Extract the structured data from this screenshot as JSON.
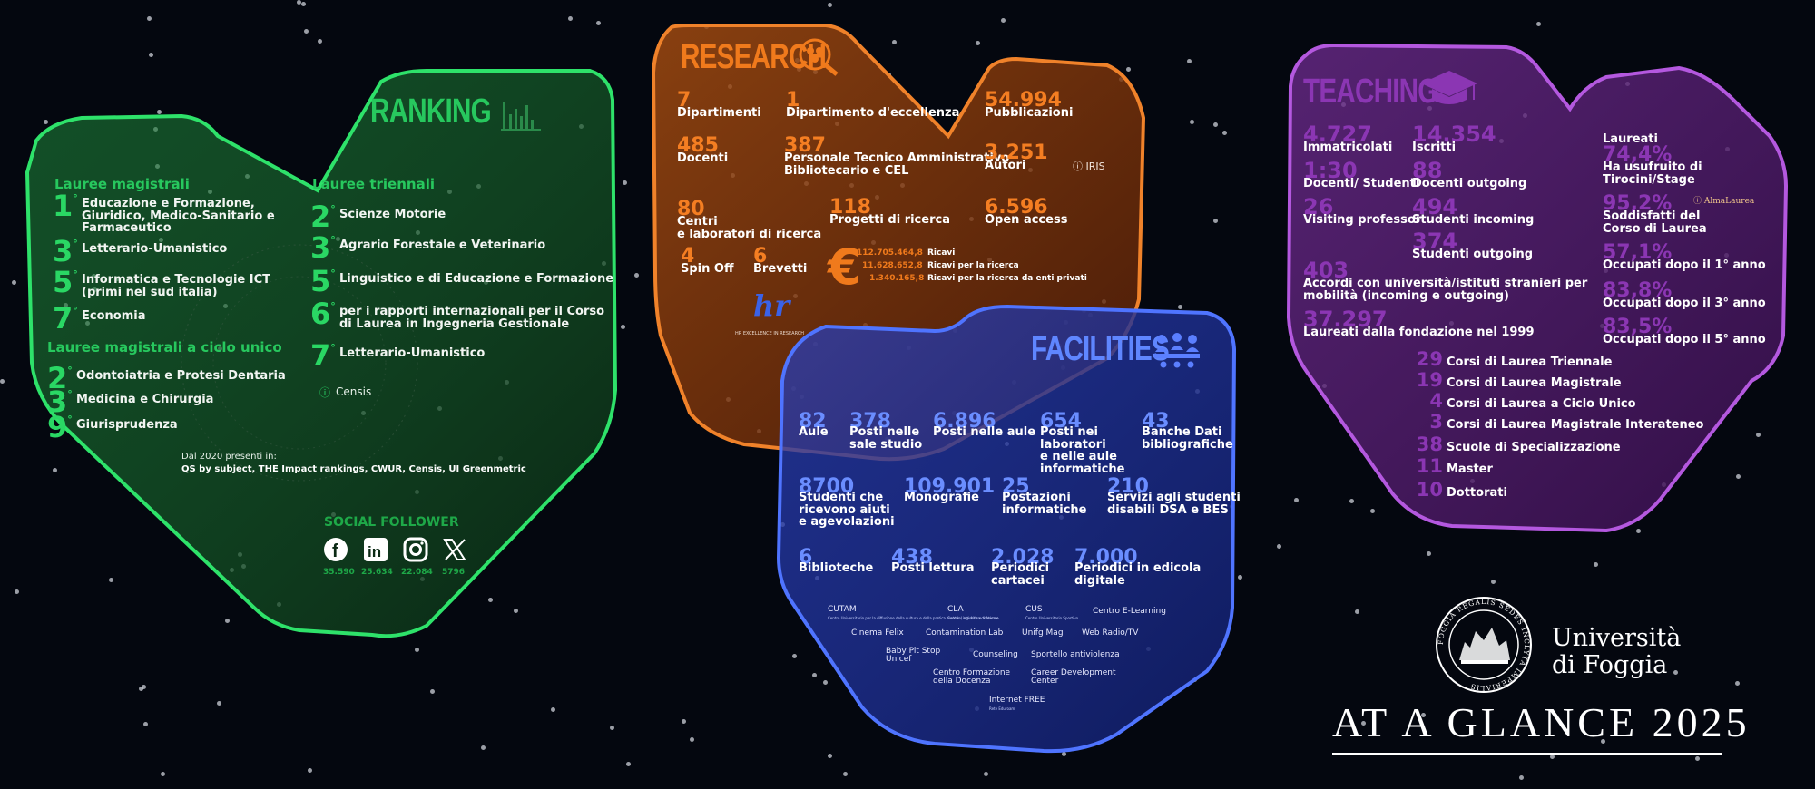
{
  "ranking": {
    "title": "RANKING",
    "magistrali_head": "Lauree magistrali",
    "magistrali": [
      {
        "rank": "1",
        "label": "Educazione e Formazione,\nGiuridico, Medico-Sanitario e\nFarmaceutico"
      },
      {
        "rank": "3",
        "label": "Letterario-Umanistico"
      },
      {
        "rank": "5",
        "label": "Informatica e Tecnologie ICT\n(primi nel sud italia)"
      },
      {
        "rank": "7",
        "label": "Economia"
      }
    ],
    "ciclo_head": "Lauree magistrali a ciclo unico",
    "ciclo": [
      {
        "rank": "2",
        "label": "Odontoiatria e Protesi Dentaria"
      },
      {
        "rank": "3",
        "label": "Medicina e Chirurgia"
      },
      {
        "rank": "9",
        "label": "Giurisprudenza"
      }
    ],
    "triennali_head": "Lauree triennali",
    "triennali": [
      {
        "rank": "2",
        "label": "Scienze Motorie"
      },
      {
        "rank": "3",
        "label": "Agrario Forestale e Veterinario"
      },
      {
        "rank": "5",
        "label": "Linguistico e di Educazione e Formazione"
      },
      {
        "rank": "6",
        "label": "per i rapporti internazionali per il Corso\ndi Laurea in Ingegneria Gestionale"
      },
      {
        "rank": "7",
        "label": "Letterario-Umanistico"
      }
    ],
    "ord": "°",
    "censis": "Censis",
    "dal2020": "Dal 2020 presenti in:",
    "rankings_list": "QS by subject, THE Impact rankings, CWUR, Censis, UI Greenmetric",
    "social_title": "SOCIAL FOLLOWER",
    "social": [
      {
        "network": "facebook",
        "count": "35.590"
      },
      {
        "network": "linkedin",
        "count": "25.634"
      },
      {
        "network": "instagram",
        "count": "22.084"
      },
      {
        "network": "x",
        "count": "5796"
      }
    ]
  },
  "research": {
    "title": "RESEARCH",
    "stats": [
      {
        "num": "7",
        "label": "Dipartimenti"
      },
      {
        "num": "1",
        "label": "Dipartimento d'eccellenza"
      },
      {
        "num": "54.994",
        "label": "Pubblicazioni"
      },
      {
        "num": "485",
        "label": "Docenti"
      },
      {
        "num": "387",
        "label": "Personale Tecnico Amministrativo\nBibliotecario e CEL"
      },
      {
        "num": "3.251",
        "label": "Autori"
      },
      {
        "num": "80",
        "label": "Centri\ne laboratori di ricerca"
      },
      {
        "num": "118",
        "label": "Progetti di ricerca"
      },
      {
        "num": "6.596",
        "label": "Open access"
      },
      {
        "num": "4",
        "label": "Spin Off"
      },
      {
        "num": "6",
        "label": "Brevetti"
      }
    ],
    "iris": "IRIS",
    "euro": "€",
    "money": [
      {
        "amount": "112.705.464,8",
        "label": "Ricavi"
      },
      {
        "amount": "11.628.652,8",
        "label": "Ricavi per la ricerca"
      },
      {
        "amount": "1.340.165,8",
        "label": "Ricavi per la ricerca da enti privati"
      }
    ],
    "hr_logo": "hr",
    "hr_caption": "HR EXCELLENCE IN RESEARCH"
  },
  "facilities": {
    "title": "FACILITIES",
    "stats": [
      {
        "num": "82",
        "label": "Aule"
      },
      {
        "num": "378",
        "label": "Posti nelle\nsale studio"
      },
      {
        "num": "6.896",
        "label": "Posti nelle aule"
      },
      {
        "num": "654",
        "label": "Posti nei\nlaboratori\ne nelle aule\ninformatiche"
      },
      {
        "num": "43",
        "label": "Banche Dati\nbibliografiche"
      },
      {
        "num": "8700",
        "label": "Studenti che\nricevono aiuti\ne agevolazioni"
      },
      {
        "num": "109.901",
        "label": "Monografie"
      },
      {
        "num": "25",
        "label": "Postazioni\ninformatiche"
      },
      {
        "num": "210",
        "label": "Servizi agli studenti\ndisabili DSA e BES"
      },
      {
        "num": "6",
        "label": "Biblioteche"
      },
      {
        "num": "438",
        "label": "Posti lettura"
      },
      {
        "num": "2.028",
        "label": "Periodici\ncartacei"
      },
      {
        "num": "7.000",
        "label": "Periodici in edicola\ndigitale"
      }
    ],
    "services": [
      {
        "name": "CUTAM",
        "sub": "Centro Universitario per la diffusione della cultura e della pratica teatrale, artistica e musicale"
      },
      {
        "name": "CLA",
        "sub": "Centro Linguistico di Ateneo"
      },
      {
        "name": "CUS",
        "sub": "Centro Universitario Sportivo"
      },
      {
        "name": "Centro E-Learning",
        "sub": ""
      },
      {
        "name": "Cinema Felix",
        "sub": ""
      },
      {
        "name": "Contamination Lab",
        "sub": ""
      },
      {
        "name": "Unifg Mag",
        "sub": ""
      },
      {
        "name": "Web Radio/TV",
        "sub": ""
      },
      {
        "name": "Baby Pit Stop\nUnicef",
        "sub": ""
      },
      {
        "name": "Counseling",
        "sub": ""
      },
      {
        "name": "Sportello antiviolenza",
        "sub": ""
      },
      {
        "name": "Centro Formazione\ndella Docenza",
        "sub": ""
      },
      {
        "name": "Career Development\nCenter",
        "sub": ""
      },
      {
        "name": "Internet FREE",
        "sub": "Rete Eduroam"
      }
    ]
  },
  "teaching": {
    "title": "TEACHING",
    "stats": [
      {
        "num": "4.727",
        "label": "Immatricolati"
      },
      {
        "num": "14.354",
        "label": "Iscritti"
      },
      {
        "num": "1:30",
        "label": "Docenti/ Studenti"
      },
      {
        "num": "88",
        "label": "Docenti outgoing"
      },
      {
        "num": "26",
        "label": "Visiting professor"
      },
      {
        "num": "494",
        "label": "Studenti incoming"
      },
      {
        "num": "374",
        "label": "Studenti outgoing"
      },
      {
        "num": "403",
        "label": "Accordi con università/istituti stranieri per\nmobilità (incoming e outgoing)"
      },
      {
        "num": "37.297",
        "label": "Laureati dalla fondazione nel 1999"
      }
    ],
    "laureati_head": "Laureati",
    "percent": [
      {
        "num": "74,4%",
        "label": "Ha usufruito di\nTirocini/Stage"
      },
      {
        "num": "95,2%",
        "label": "Soddisfatti del\nCorso di Laurea"
      },
      {
        "num": "57,1%",
        "label": "Occupati dopo il 1° anno"
      },
      {
        "num": "83,8%",
        "label": "Occupati dopo il 3° anno"
      },
      {
        "num": "83,5%",
        "label": "Occupati dopo il 5° anno"
      }
    ],
    "almalaurea": "AlmaLaurea",
    "courses": [
      {
        "num": "29",
        "label": "Corsi di Laurea Triennale"
      },
      {
        "num": "19",
        "label": "Corsi di Laurea Magistrale"
      },
      {
        "num": "4",
        "label": "Corsi di Laurea a Ciclo Unico"
      },
      {
        "num": "3",
        "label": "Corsi di Laurea Magistrale Interateneo"
      },
      {
        "num": "38",
        "label": "Scuole di Specializzazione"
      },
      {
        "num": "11",
        "label": "Master"
      },
      {
        "num": "10",
        "label": "Dottorati"
      }
    ]
  },
  "brand": {
    "seal_text": "FOGGIA REGALIS SEDES INCLYTA IMPERIALIS",
    "university_line1": "Università",
    "university_line2": "di Foggia",
    "tagline": "AT A GLANCE 2025"
  },
  "colors": {
    "ranking": "#2bd466",
    "research": "#f07a1c",
    "facilities": "#5b7fff",
    "teaching": "#b04fd6",
    "background": "#04070f"
  }
}
